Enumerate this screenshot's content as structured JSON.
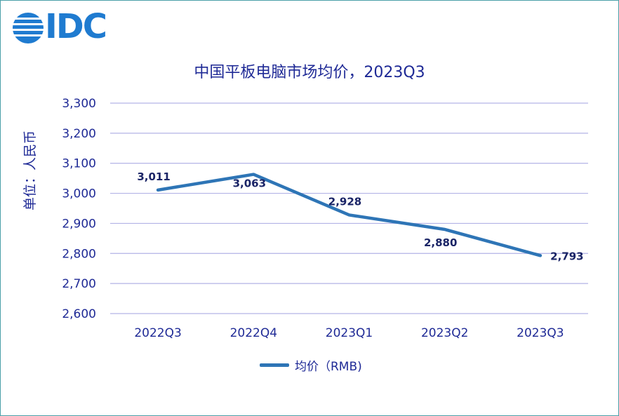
{
  "logo": {
    "text": "IDC"
  },
  "chart_data": {
    "type": "line",
    "title": "中国平板电脑市场均价，2023Q3",
    "ylabel": "单位：人民币",
    "xlabel": "",
    "categories": [
      "2022Q3",
      "2022Q4",
      "2023Q1",
      "2023Q2",
      "2023Q3"
    ],
    "series": [
      {
        "name": "均价（RMB)",
        "values": [
          3011,
          3063,
          2928,
          2880,
          2793
        ],
        "color": "#2e75b6"
      }
    ],
    "data_labels": [
      "3,011",
      "3,063",
      "2,928",
      "2,880",
      "2,793"
    ],
    "ylim": [
      2600,
      3300
    ],
    "yticks": [
      2600,
      2700,
      2800,
      2900,
      3000,
      3100,
      3200,
      3300
    ],
    "ytick_labels": [
      "2,600",
      "2,700",
      "2,800",
      "2,900",
      "3,000",
      "3,100",
      "3,200",
      "3,300"
    ],
    "grid": true,
    "legend_position": "bottom"
  }
}
